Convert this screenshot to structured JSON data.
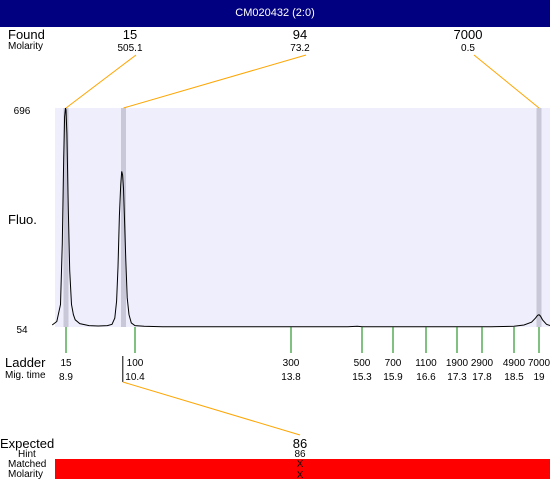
{
  "window": {
    "title": "CM020432 (2:0)"
  },
  "labels": {
    "found": "Found",
    "molarity": "Molarity",
    "fluo": "Fluo.",
    "ladder": "Ladder",
    "mig_time": "Mig. time",
    "expected": "Expected",
    "hint": "Hint",
    "matched": "Matched",
    "molarity2": "Molarity"
  },
  "colors": {
    "title_bg": "#000080",
    "plot_bg": "#EEEEFC",
    "found_line": "#FFA500",
    "ladder_tick": "#008000",
    "bar_red": "#FF0000"
  },
  "chart_data": {
    "type": "line",
    "title": "",
    "ylabel": "Fluo.",
    "ylim": [
      54,
      696
    ],
    "xlim": [
      8.6,
      19.35
    ],
    "y_ticks": [
      "696",
      "54"
    ],
    "found_peaks": [
      {
        "size": "15",
        "molarity": "505.1",
        "time": 8.9
      },
      {
        "size": "94",
        "molarity": "73.2",
        "time": 10.15
      },
      {
        "size": "7000",
        "molarity": "0.5",
        "time": 19.0
      }
    ],
    "ladder": [
      {
        "size": "15",
        "time": "8.9"
      },
      {
        "size": "100",
        "time": "10.4"
      },
      {
        "size": "300",
        "time": "13.8"
      },
      {
        "size": "500",
        "time": "15.3"
      },
      {
        "size": "700",
        "time": "15.9"
      },
      {
        "size": "1100",
        "time": "16.6"
      },
      {
        "size": "1900",
        "time": "17.3"
      },
      {
        "size": "2900",
        "time": "17.8"
      },
      {
        "size": "4900",
        "time": "18.5"
      },
      {
        "size": "7000",
        "time": "19"
      }
    ],
    "expected": {
      "size": "86",
      "hint": "86",
      "matched": "X",
      "molarity": "X",
      "time": 10.2
    },
    "trace": {
      "x": [
        8.6,
        8.7,
        8.78,
        8.82,
        8.85,
        8.87,
        8.89,
        8.9,
        8.92,
        8.95,
        8.98,
        9.02,
        9.06,
        9.1,
        9.2,
        9.4,
        9.6,
        9.8,
        9.9,
        9.96,
        10.0,
        10.03,
        10.06,
        10.09,
        10.11,
        10.13,
        10.15,
        10.17,
        10.2,
        10.23,
        10.27,
        10.32,
        10.4,
        10.6,
        11.0,
        12.0,
        13.0,
        14.0,
        15.0,
        15.2,
        15.3,
        15.4,
        16.0,
        17.0,
        18.0,
        18.5,
        18.7,
        18.85,
        18.93,
        18.97,
        19.0,
        19.03,
        19.07,
        19.15,
        19.25,
        19.35
      ],
      "y": [
        60,
        70,
        120,
        300,
        550,
        670,
        696,
        690,
        620,
        400,
        220,
        120,
        90,
        75,
        64,
        58,
        57,
        58,
        62,
        80,
        130,
        230,
        380,
        470,
        510,
        500,
        460,
        380,
        250,
        140,
        90,
        66,
        58,
        56,
        55,
        55,
        55,
        55,
        55,
        56,
        55,
        55,
        55,
        55,
        55,
        56,
        60,
        68,
        80,
        88,
        90,
        86,
        75,
        62,
        57,
        55
      ]
    }
  }
}
